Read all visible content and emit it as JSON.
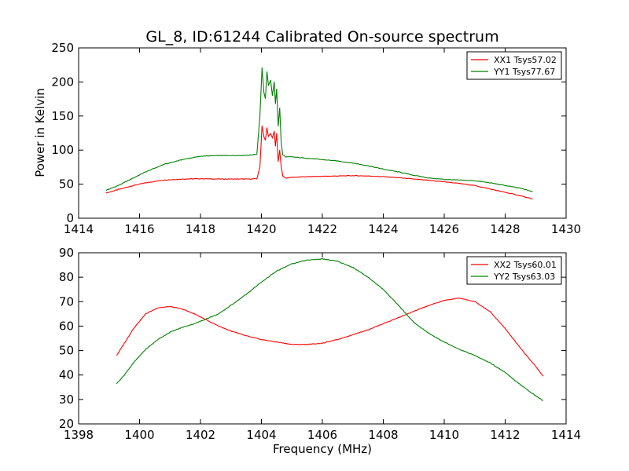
{
  "figure": {
    "title": "GL_8, ID:61244 Calibrated On-source spectrum",
    "xlabel": "Frequency (MHz)",
    "ylabel": "Power in Kelvin"
  },
  "chart_data": [
    {
      "type": "line",
      "xlim": [
        1414,
        1430
      ],
      "ylim": [
        0,
        250
      ],
      "xticks": [
        1414,
        1416,
        1418,
        1420,
        1422,
        1424,
        1426,
        1428,
        1430
      ],
      "yticks": [
        0,
        50,
        100,
        150,
        200,
        250
      ],
      "legend_position": "top-right",
      "series": [
        {
          "name": "XX1 Tsys57.02",
          "color": "#ff0000",
          "x": [
            1414.9,
            1415.3,
            1415.7,
            1416.2,
            1416.8,
            1417.4,
            1418.0,
            1418.6,
            1419.2,
            1419.6,
            1419.85,
            1419.95,
            1420.02,
            1420.08,
            1420.13,
            1420.18,
            1420.23,
            1420.3,
            1420.36,
            1420.42,
            1420.46,
            1420.5,
            1420.55,
            1420.6,
            1420.65,
            1420.7,
            1420.8,
            1421.0,
            1421.5,
            1422.0,
            1422.5,
            1423.0,
            1423.5,
            1424.0,
            1424.5,
            1425.0,
            1425.5,
            1426.0,
            1426.5,
            1427.0,
            1427.5,
            1428.0,
            1428.5,
            1428.9
          ],
          "y": [
            37,
            42,
            47,
            52,
            56,
            57.5,
            58,
            57.5,
            57.5,
            57.5,
            58,
            75,
            136,
            120,
            114,
            133,
            120,
            124,
            118,
            128,
            105,
            125,
            83,
            100,
            75,
            62,
            59,
            60,
            61,
            61.5,
            62,
            62.5,
            62,
            61,
            59.5,
            57.5,
            55.5,
            53.5,
            51,
            48,
            43,
            38,
            33,
            28
          ]
        },
        {
          "name": "YY1 Tsys77.67",
          "color": "#008000",
          "x": [
            1414.9,
            1415.3,
            1415.7,
            1416.2,
            1416.8,
            1417.4,
            1418.0,
            1418.6,
            1419.2,
            1419.6,
            1419.85,
            1419.95,
            1420.02,
            1420.08,
            1420.13,
            1420.18,
            1420.23,
            1420.3,
            1420.36,
            1420.42,
            1420.46,
            1420.5,
            1420.55,
            1420.6,
            1420.65,
            1420.7,
            1420.8,
            1421.0,
            1421.5,
            1422.0,
            1422.5,
            1423.0,
            1423.5,
            1424.0,
            1424.5,
            1425.0,
            1425.5,
            1426.0,
            1426.5,
            1427.0,
            1427.5,
            1428.0,
            1428.5,
            1428.9
          ],
          "y": [
            41,
            48,
            57,
            68,
            79,
            86,
            91,
            92,
            92,
            92.5,
            94,
            150,
            221,
            185,
            175,
            215,
            195,
            203,
            180,
            200,
            168,
            190,
            135,
            162,
            110,
            93,
            90,
            90,
            88,
            86,
            84,
            81,
            77,
            72,
            68,
            63,
            59,
            57,
            56,
            55,
            52,
            48,
            44,
            39
          ]
        }
      ]
    },
    {
      "type": "line",
      "xlim": [
        1398,
        1414
      ],
      "ylim": [
        20,
        90
      ],
      "xticks": [
        1398,
        1400,
        1402,
        1404,
        1406,
        1408,
        1410,
        1412,
        1414
      ],
      "yticks": [
        20,
        30,
        40,
        50,
        60,
        70,
        80,
        90
      ],
      "legend_position": "top-right",
      "series": [
        {
          "name": "XX2 Tsys60.01",
          "color": "#ff0000",
          "x": [
            1399.25,
            1399.5,
            1399.8,
            1400.2,
            1400.6,
            1401.0,
            1401.4,
            1401.8,
            1402.2,
            1402.6,
            1403.0,
            1403.5,
            1404.0,
            1404.5,
            1405.0,
            1405.5,
            1406.0,
            1406.5,
            1407.0,
            1407.5,
            1408.0,
            1408.5,
            1409.0,
            1409.5,
            1410.0,
            1410.5,
            1411.0,
            1411.5,
            1412.0,
            1412.5,
            1413.0,
            1413.25
          ],
          "y": [
            48,
            53,
            59,
            65,
            67.5,
            68,
            67,
            65,
            62.5,
            60,
            58,
            56,
            54.5,
            53.5,
            52.5,
            52.5,
            53,
            54.5,
            56.5,
            58.5,
            61,
            63.5,
            66,
            68.5,
            70.5,
            71.5,
            70,
            66,
            59,
            51,
            43.5,
            39.5
          ]
        },
        {
          "name": "YY2 Tsys63.03",
          "color": "#008000",
          "x": [
            1399.25,
            1399.5,
            1399.8,
            1400.2,
            1400.6,
            1401.0,
            1401.4,
            1401.8,
            1402.2,
            1402.6,
            1403.0,
            1403.5,
            1404.0,
            1404.5,
            1405.0,
            1405.5,
            1406.0,
            1406.5,
            1407.0,
            1407.5,
            1408.0,
            1408.5,
            1409.0,
            1409.5,
            1410.0,
            1410.5,
            1411.0,
            1411.5,
            1412.0,
            1412.5,
            1413.0,
            1413.25
          ],
          "y": [
            36.5,
            40,
            45,
            50.5,
            54.5,
            57.5,
            59.5,
            61,
            63,
            65,
            68.5,
            73,
            78,
            82.5,
            85.5,
            87,
            87.5,
            86.5,
            84,
            80,
            75,
            68.5,
            61.5,
            57,
            53.5,
            50.5,
            48,
            45,
            41,
            36,
            31.5,
            29.5
          ]
        }
      ]
    }
  ]
}
